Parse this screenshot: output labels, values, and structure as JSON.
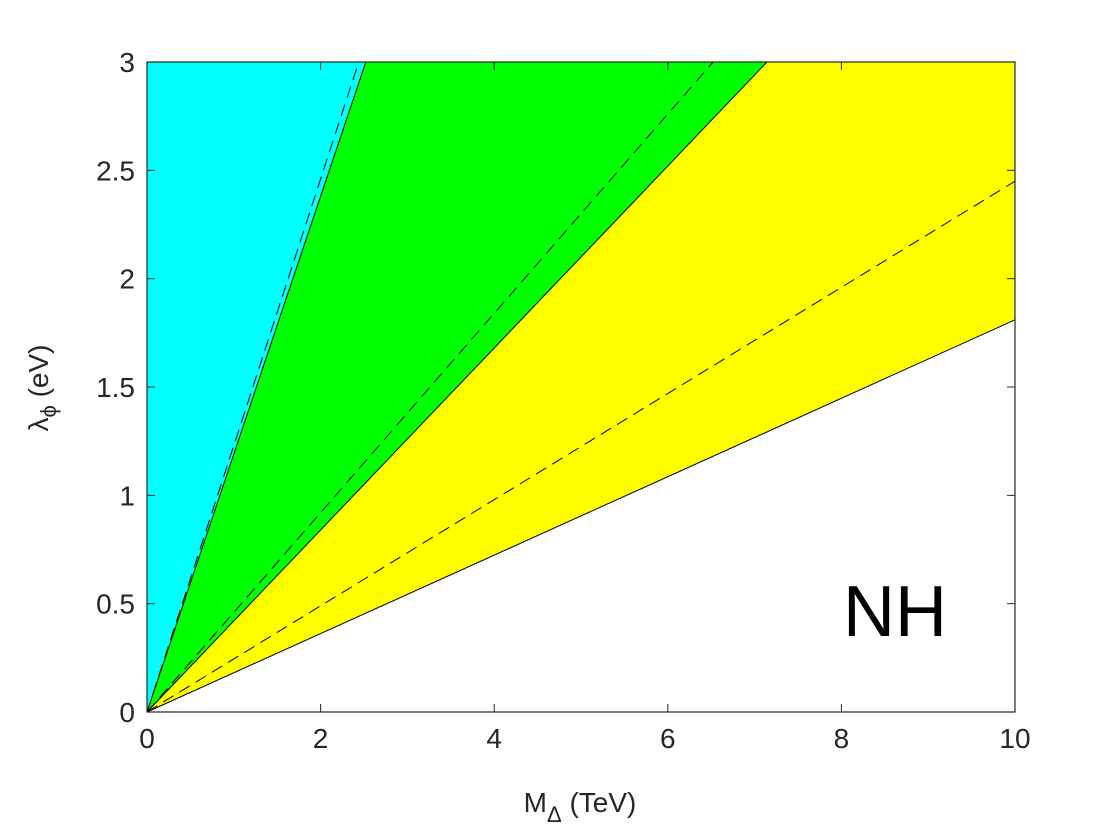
{
  "chart_data": {
    "type": "area",
    "x_range": [
      0,
      10
    ],
    "y_range": [
      0,
      3
    ],
    "x_ticks": [
      "0",
      "2",
      "4",
      "6",
      "8",
      "10"
    ],
    "y_ticks": [
      "0",
      "0.5",
      "1",
      "1.5",
      "2",
      "2.5",
      "3"
    ],
    "xlabel": {
      "base": "M",
      "sub": "Δ",
      "unit": " (TeV)"
    },
    "ylabel": {
      "base": "λ",
      "sub": "ϕ",
      "unit": " (eV)"
    },
    "annotation": "NH",
    "regions": [
      {
        "color": "#00ffff",
        "lower_slope": 1.19,
        "upper_slope": null
      },
      {
        "color": "#00ff00",
        "lower_slope": 0.42,
        "upper_slope": 1.19
      },
      {
        "color": "#ffff00",
        "lower_slope": 0.181,
        "upper_slope": 0.42
      }
    ],
    "solid_lines": [
      {
        "slope": 1.19
      },
      {
        "slope": 0.42
      },
      {
        "slope": 0.181
      }
    ],
    "dashed_lines": [
      {
        "slope": 1.23
      },
      {
        "slope": 0.46
      },
      {
        "slope": 0.245
      }
    ],
    "grid": false
  }
}
